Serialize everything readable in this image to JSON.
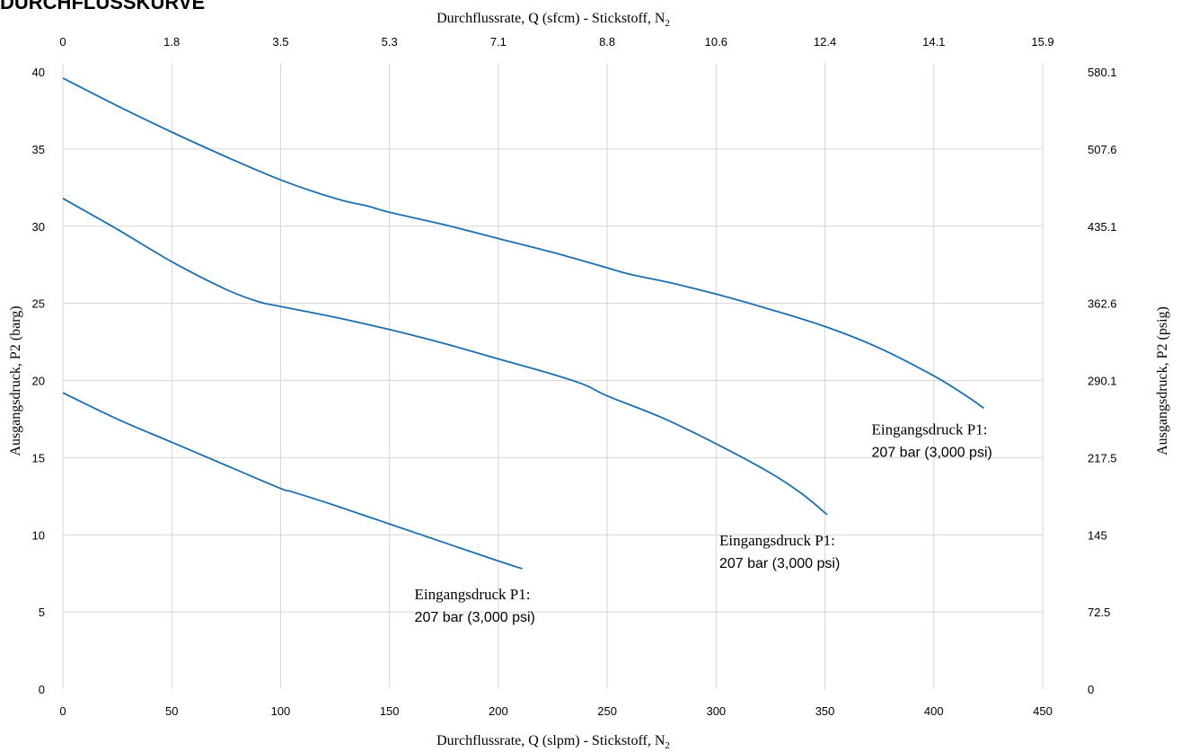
{
  "heading": "DURCHFLUSSKURVE",
  "chart_data": {
    "type": "line",
    "title": "DURCHFLUSSKURVE",
    "xlabel": "Durchflussrate, Q (slpm) - Stickstoff, N",
    "xlabel_sub": "2",
    "x2label": "Durchflussrate, Q (sfcm) - Stickstoff, N",
    "x2label_sub": "2",
    "ylabel": "Ausgangsdruck, P2 (barg)",
    "y2label": "Ausgangsdruck, P2 (psig)",
    "xlim": [
      0,
      450
    ],
    "ylim": [
      0,
      40
    ],
    "x_ticks": [
      "0",
      "50",
      "100",
      "150",
      "200",
      "250",
      "300",
      "350",
      "400",
      "450"
    ],
    "x2_ticks": [
      "0",
      "1.8",
      "3.5",
      "5.3",
      "7.1",
      "8.8",
      "10.6",
      "12.4",
      "14.1",
      "15.9"
    ],
    "y_ticks": [
      "0",
      "5",
      "10",
      "15",
      "20",
      "25",
      "30",
      "35",
      "40"
    ],
    "y2_ticks": [
      "0",
      "72.5",
      "145",
      "217.5",
      "290.1",
      "362.6",
      "435.1",
      "507.6",
      "580.1"
    ],
    "grid": true,
    "line_color": "#1a6fb0",
    "series": [
      {
        "x": [
          0,
          25,
          50,
          75,
          100,
          125,
          140,
          150,
          175,
          200,
          225,
          250,
          260,
          280,
          300,
          325,
          350,
          375,
          400,
          415,
          423
        ],
        "y": [
          39.6,
          37.8,
          36.1,
          34.5,
          33.0,
          31.8,
          31.3,
          30.9,
          30.1,
          29.2,
          28.3,
          27.3,
          26.9,
          26.3,
          25.6,
          24.6,
          23.5,
          22.1,
          20.3,
          19.0,
          18.2
        ],
        "annotation": [
          "Eingangsdruck P1:",
          "207 bar (3,000 psi)"
        ]
      },
      {
        "x": [
          0,
          25,
          50,
          75,
          90,
          100,
          125,
          150,
          175,
          200,
          225,
          240,
          250,
          275,
          300,
          325,
          340,
          351
        ],
        "y": [
          31.8,
          29.8,
          27.7,
          25.9,
          25.1,
          24.8,
          24.1,
          23.3,
          22.4,
          21.4,
          20.4,
          19.7,
          19.0,
          17.6,
          15.9,
          14.0,
          12.6,
          11.3
        ],
        "annotation": [
          "Eingangsdruck P1:",
          "207 bar (3,000 psi)"
        ]
      },
      {
        "x": [
          0,
          25,
          50,
          75,
          100,
          105,
          125,
          150,
          175,
          200,
          211
        ],
        "y": [
          19.2,
          17.5,
          16.0,
          14.5,
          13.0,
          12.8,
          11.9,
          10.7,
          9.5,
          8.3,
          7.8
        ],
        "annotation": [
          "Eingangsdruck P1:",
          "207 bar (3,000 psi)"
        ]
      }
    ]
  }
}
